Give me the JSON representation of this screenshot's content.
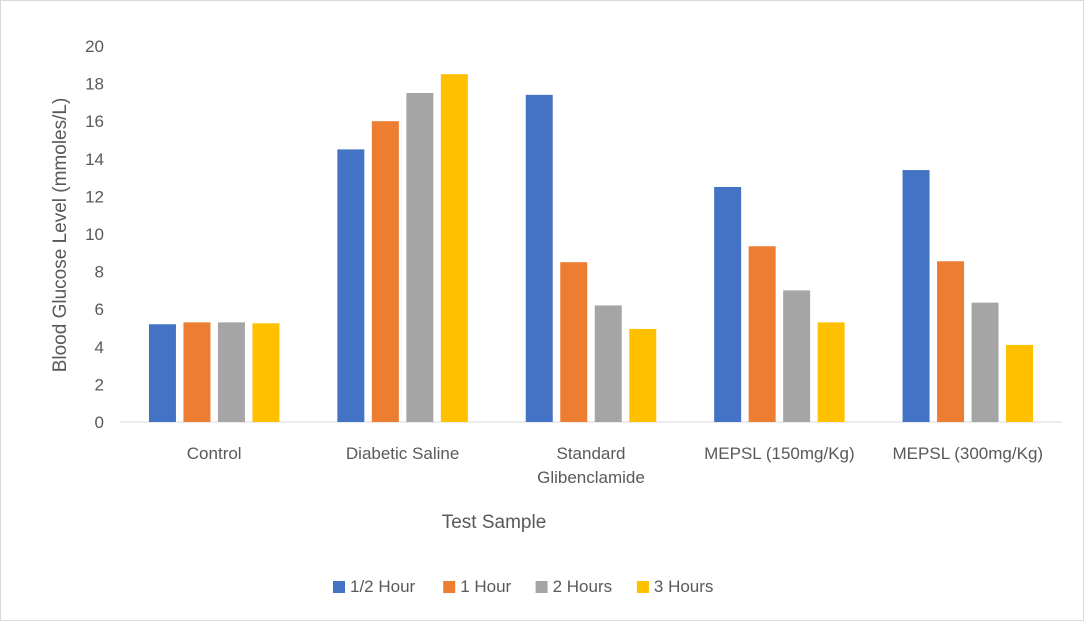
{
  "chart_data": {
    "type": "bar",
    "categories": [
      [
        "Control"
      ],
      [
        "Diabetic Saline"
      ],
      [
        "Standard",
        "Glibenclamide"
      ],
      [
        "MEPSL (150mg/Kg)"
      ],
      [
        "MEPSL (300mg/Kg)"
      ]
    ],
    "series": [
      {
        "name": "1/2 Hour",
        "color": "#4472C4",
        "values": [
          5.2,
          14.5,
          17.4,
          12.5,
          13.4
        ]
      },
      {
        "name": "1 Hour",
        "color": "#ED7D31",
        "values": [
          5.3,
          16.0,
          8.5,
          9.35,
          8.55
        ]
      },
      {
        "name": "2 Hours",
        "color": "#A5A5A5",
        "values": [
          5.3,
          17.5,
          6.2,
          7.0,
          6.35
        ]
      },
      {
        "name": "3 Hours",
        "color": "#FFC000",
        "values": [
          5.25,
          18.5,
          4.95,
          5.3,
          4.1
        ]
      }
    ],
    "title": "",
    "xlabel": "Test Sample",
    "ylabel": "Blood Glucose Level (mmoles/L)",
    "ylim": [
      0,
      20
    ],
    "yticks": [
      0,
      2,
      4,
      6,
      8,
      10,
      12,
      14,
      16,
      18,
      20
    ],
    "grid": false,
    "legend_position": "bottom"
  }
}
